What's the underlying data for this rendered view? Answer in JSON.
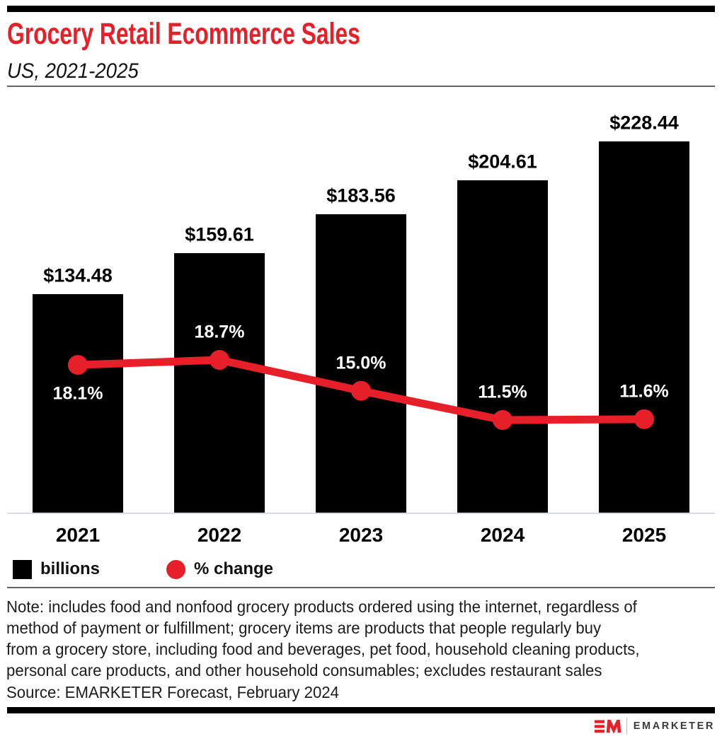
{
  "header": {
    "title": "Grocery Retail Ecommerce Sales",
    "subtitle": "US, 2021-2025"
  },
  "chart_data": {
    "type": "combo",
    "categories": [
      "2021",
      "2022",
      "2023",
      "2024",
      "2025"
    ],
    "series": [
      {
        "name": "billions",
        "type": "bar",
        "color": "#000000",
        "values": [
          134.48,
          159.61,
          183.56,
          204.61,
          228.44
        ],
        "value_labels": [
          "$134.48",
          "$159.61",
          "$183.56",
          "$204.61",
          "$228.44"
        ]
      },
      {
        "name": "% change",
        "type": "line",
        "color": "#e71f28",
        "values": [
          18.1,
          18.7,
          15.0,
          11.5,
          11.6
        ],
        "value_labels": [
          "18.1%",
          "18.7%",
          "15.0%",
          "11.5%",
          "11.6%"
        ],
        "label_placement": [
          "below",
          "above",
          "above",
          "above",
          "above"
        ]
      }
    ],
    "title": "Grocery Retail Ecommerce Sales",
    "subtitle": "US, 2021-2025",
    "xlabel": "",
    "ylabel": "",
    "ylim_bars": [
      0,
      230
    ],
    "ylim_line": [
      0,
      20
    ],
    "grid": false,
    "legend_position": "bottom-left"
  },
  "legend": {
    "bar_label": "billions",
    "line_label": "% change"
  },
  "footnote": {
    "note": "Note: includes food and nonfood grocery products ordered using the internet, regardless of\nmethod of payment or fulfillment; grocery items are products that people regularly buy\nfrom a grocery store, including food and beverages, pet food, household cleaning products,\npersonal care products, and other household consumables; excludes restaurant sales",
    "source": "Source: EMARKETER Forecast, February 2024"
  },
  "branding": {
    "wordmark": "EMARKETER",
    "accent_color": "#e71f28"
  }
}
